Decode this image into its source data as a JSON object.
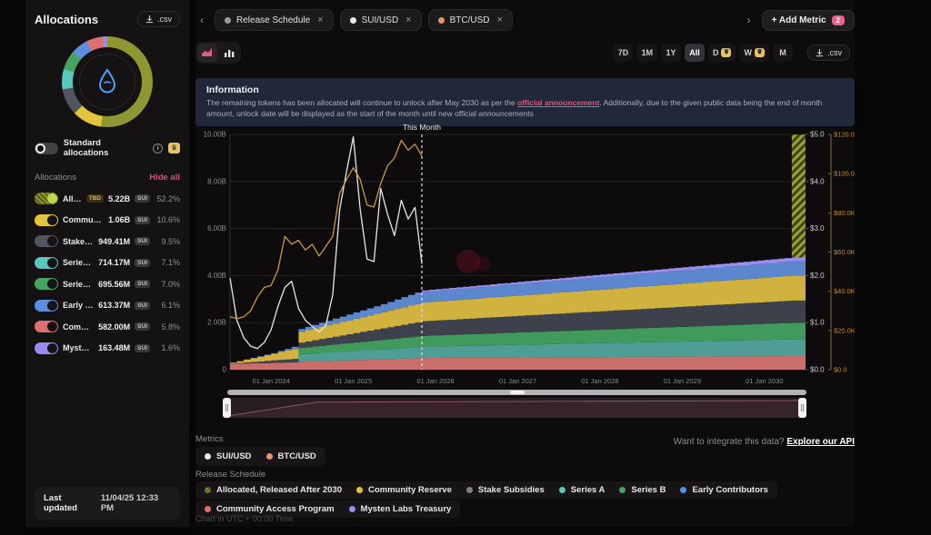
{
  "sidebar": {
    "title": "Allocations",
    "csv_button": ".csv",
    "standard_toggle_label": "Standard allocations",
    "list_header": "Allocations",
    "hide_all_label": "Hide all",
    "last_updated_label": "Last updated",
    "last_updated_value": "11/04/25 12:33 PM",
    "allocations": [
      {
        "name": "Allocat...",
        "badge": "TBD",
        "amount": "5.22B",
        "unit": "SUI",
        "percent": "52.2%",
        "color": "#8f9733",
        "knob": "#bcd94b",
        "hatched": true
      },
      {
        "name": "Community ...",
        "amount": "1.06B",
        "unit": "SUI",
        "percent": "10.6%",
        "color": "#e4c33e"
      },
      {
        "name": "Stake Subsi...",
        "amount": "949.41M",
        "unit": "SUI",
        "percent": "9.5%",
        "color": "#51555e"
      },
      {
        "name": "Series A",
        "amount": "714.17M",
        "unit": "SUI",
        "percent": "7.1%",
        "color": "#57c8bd"
      },
      {
        "name": "Series B",
        "amount": "695.56M",
        "unit": "SUI",
        "percent": "7.0%",
        "color": "#47a45f"
      },
      {
        "name": "Early Contri...",
        "amount": "613.37M",
        "unit": "SUI",
        "percent": "6.1%",
        "color": "#5b8ede"
      },
      {
        "name": "Community ...",
        "amount": "582.00M",
        "unit": "SUI",
        "percent": "5.8%",
        "color": "#e07070"
      },
      {
        "name": "Mysten Lab...",
        "amount": "163.48M",
        "unit": "SUI",
        "percent": "1.6%",
        "color": "#9b8af0"
      }
    ]
  },
  "tabs": {
    "items": [
      {
        "label": "Release Schedule",
        "dot": "#9a9a9a"
      },
      {
        "label": "SUI/USD",
        "dot": "#ececec"
      },
      {
        "label": "BTC/USD",
        "dot": "#e0956b"
      }
    ],
    "add_metric_label": "+ Add Metric",
    "add_metric_count": "2"
  },
  "toolbar": {
    "ranges": [
      {
        "label": "7D"
      },
      {
        "label": "1M"
      },
      {
        "label": "1Y"
      },
      {
        "label": "All",
        "active": true
      },
      {
        "label": "D",
        "crown": true
      },
      {
        "label": "W",
        "crown": true
      },
      {
        "label": "M"
      }
    ],
    "csv_button": ".csv"
  },
  "info_banner": {
    "title": "Information",
    "text_before_link": "The remaining tokens has been allocated will continue to unlock after May 2030 as per the ",
    "link_text": "official announcement",
    "text_after_link": ". Additionally, due to the given public data being the end of month amount, unlock date will be displayed as the start of the month until new official announcements"
  },
  "chart_data": {
    "type": "area",
    "stacked": true,
    "months_total": 84,
    "this_month_index": 28,
    "this_month_label": "This Month",
    "token_axis": {
      "max": 10,
      "ticks": [
        {
          "v": 0,
          "label": "0"
        },
        {
          "v": 2,
          "label": "2.00B"
        },
        {
          "v": 4,
          "label": "4.00B"
        },
        {
          "v": 6,
          "label": "6.00B"
        },
        {
          "v": 8,
          "label": "8.00B"
        },
        {
          "v": 10,
          "label": "10.00B"
        }
      ]
    },
    "sui_axis": {
      "color": "#cfcfcf",
      "max": 5,
      "ticks": [
        {
          "v": 0,
          "label": "$0.0"
        },
        {
          "v": 1,
          "label": "$1.0"
        },
        {
          "v": 2,
          "label": "$2.0"
        },
        {
          "v": 3,
          "label": "$3.0"
        },
        {
          "v": 4,
          "label": "$4.0"
        },
        {
          "v": 5,
          "label": "$5.0"
        }
      ]
    },
    "btc_axis": {
      "color": "#c08c3e",
      "max": 120,
      "ticks": [
        {
          "v": 0,
          "label": "$0.0"
        },
        {
          "v": 20,
          "label": "$20.0K"
        },
        {
          "v": 40,
          "label": "$40.0K"
        },
        {
          "v": 60,
          "label": "$60.0K"
        },
        {
          "v": 80,
          "label": "$80.0K"
        },
        {
          "v": 100,
          "label": "$100.0K"
        },
        {
          "v": 120,
          "label": "$120.0K"
        }
      ]
    },
    "x_ticks": [
      {
        "t": 6,
        "label": "01 Jan 2024"
      },
      {
        "t": 18,
        "label": "01 Jan 2025"
      },
      {
        "t": 30,
        "label": "01 Jan 2026"
      },
      {
        "t": 42,
        "label": "01 Jan 2027"
      },
      {
        "t": 54,
        "label": "01 Jan 2028"
      },
      {
        "t": 66,
        "label": "01 Jan 2029"
      },
      {
        "t": 78,
        "label": "01 Jan 2030"
      }
    ],
    "series": [
      {
        "name": "Community Access Program",
        "color": "#c96e6a",
        "keyframes": [
          [
            0,
            0.25
          ],
          [
            9,
            0.31
          ],
          [
            10,
            0.34
          ],
          [
            28,
            0.5
          ],
          [
            82,
            0.58
          ],
          [
            84,
            0.58
          ]
        ]
      },
      {
        "name": "Series A",
        "color": "#4e9d96",
        "keyframes": [
          [
            0,
            0
          ],
          [
            9,
            0
          ],
          [
            10,
            0.3
          ],
          [
            28,
            0.48
          ],
          [
            82,
            0.71
          ],
          [
            84,
            0.71
          ]
        ]
      },
      {
        "name": "Series B",
        "color": "#3f9a5c",
        "keyframes": [
          [
            0,
            0
          ],
          [
            9,
            0
          ],
          [
            10,
            0.29
          ],
          [
            28,
            0.46
          ],
          [
            82,
            0.7
          ],
          [
            84,
            0.7
          ]
        ]
      },
      {
        "name": "Stake Subsidies",
        "color": "#3c414b",
        "keyframes": [
          [
            0,
            0.01
          ],
          [
            9,
            0.15
          ],
          [
            10,
            0.22
          ],
          [
            28,
            0.62
          ],
          [
            82,
            0.95
          ],
          [
            84,
            0.95
          ]
        ]
      },
      {
        "name": "Community Reserve",
        "color": "#d1b23e",
        "keyframes": [
          [
            0,
            0.04
          ],
          [
            9,
            0.42
          ],
          [
            10,
            0.46
          ],
          [
            28,
            0.8
          ],
          [
            82,
            1.06
          ],
          [
            84,
            1.06
          ]
        ]
      },
      {
        "name": "Early Contributors",
        "color": "#5b87cf",
        "keyframes": [
          [
            0,
            0
          ],
          [
            6,
            0.02
          ],
          [
            10,
            0.12
          ],
          [
            28,
            0.45
          ],
          [
            82,
            0.61
          ],
          [
            84,
            0.61
          ]
        ]
      },
      {
        "name": "Mysten Labs Treasury",
        "color": "#9c8cf0",
        "keyframes": [
          [
            0,
            0
          ],
          [
            22,
            0
          ],
          [
            28,
            0.06
          ],
          [
            82,
            0.16
          ],
          [
            84,
            0.16
          ]
        ]
      },
      {
        "name": "Allocated, Released After 2030",
        "color": "#7a8128",
        "hatched": true,
        "keyframes": [
          [
            0,
            0
          ],
          [
            81,
            0
          ],
          [
            82,
            5.22
          ],
          [
            84,
            5.22
          ]
        ]
      }
    ],
    "lines": [
      {
        "name": "SUI/USD",
        "color": "#e8e8e8",
        "axis_max": 5,
        "values": [
          1.95,
          1.05,
          0.68,
          0.5,
          0.45,
          0.58,
          0.85,
          1.35,
          1.75,
          1.88,
          1.3,
          1.05,
          0.92,
          0.8,
          0.95,
          1.6,
          3.4,
          4.2,
          4.95,
          3.4,
          2.35,
          2.3,
          3.85,
          3.3,
          2.85,
          3.6,
          3.2,
          3.45,
          2.25
        ]
      },
      {
        "name": "BTC/USD",
        "color": "#c9983f",
        "axis_max": 120,
        "values": [
          27,
          26,
          27,
          30,
          37,
          42,
          43,
          51,
          68,
          64,
          66,
          61,
          64,
          58,
          63,
          68,
          90,
          97,
          103,
          97,
          84,
          83,
          95,
          104,
          108,
          117,
          112,
          115,
          109
        ]
      }
    ],
    "overview_line": [
      [
        0,
        1.0
      ],
      [
        13,
        0.15
      ],
      [
        84,
        0.05
      ]
    ],
    "grid": true,
    "legend_position": "bottom"
  },
  "metrics_section": {
    "label": "Metrics",
    "items": [
      {
        "label": "SUI/USD",
        "dot": "#ececec"
      },
      {
        "label": "BTC/USD",
        "dot": "#e0956b"
      }
    ],
    "api_prompt": "Want to integrate this data? ",
    "api_link": "Explore our API"
  },
  "release_section": {
    "label": "Release Schedule",
    "row1": [
      {
        "label": "Allocated, Released After 2030",
        "dot": "#8f9733",
        "hatched": true
      },
      {
        "label": "Community Reserve",
        "dot": "#e4c33e"
      },
      {
        "label": "Stake Subsidies",
        "dot": "#7d8088"
      },
      {
        "label": "Series A",
        "dot": "#57c8bd"
      },
      {
        "label": "Series B",
        "dot": "#47a45f"
      },
      {
        "label": "Early Contributors",
        "dot": "#5b8ede"
      }
    ],
    "row2": [
      {
        "label": "Community Access Program",
        "dot": "#e07070"
      },
      {
        "label": "Mysten Labs Treasury",
        "dot": "#9b8af0"
      }
    ]
  },
  "footer_note": "Chart in UTC + 00:00 Time"
}
